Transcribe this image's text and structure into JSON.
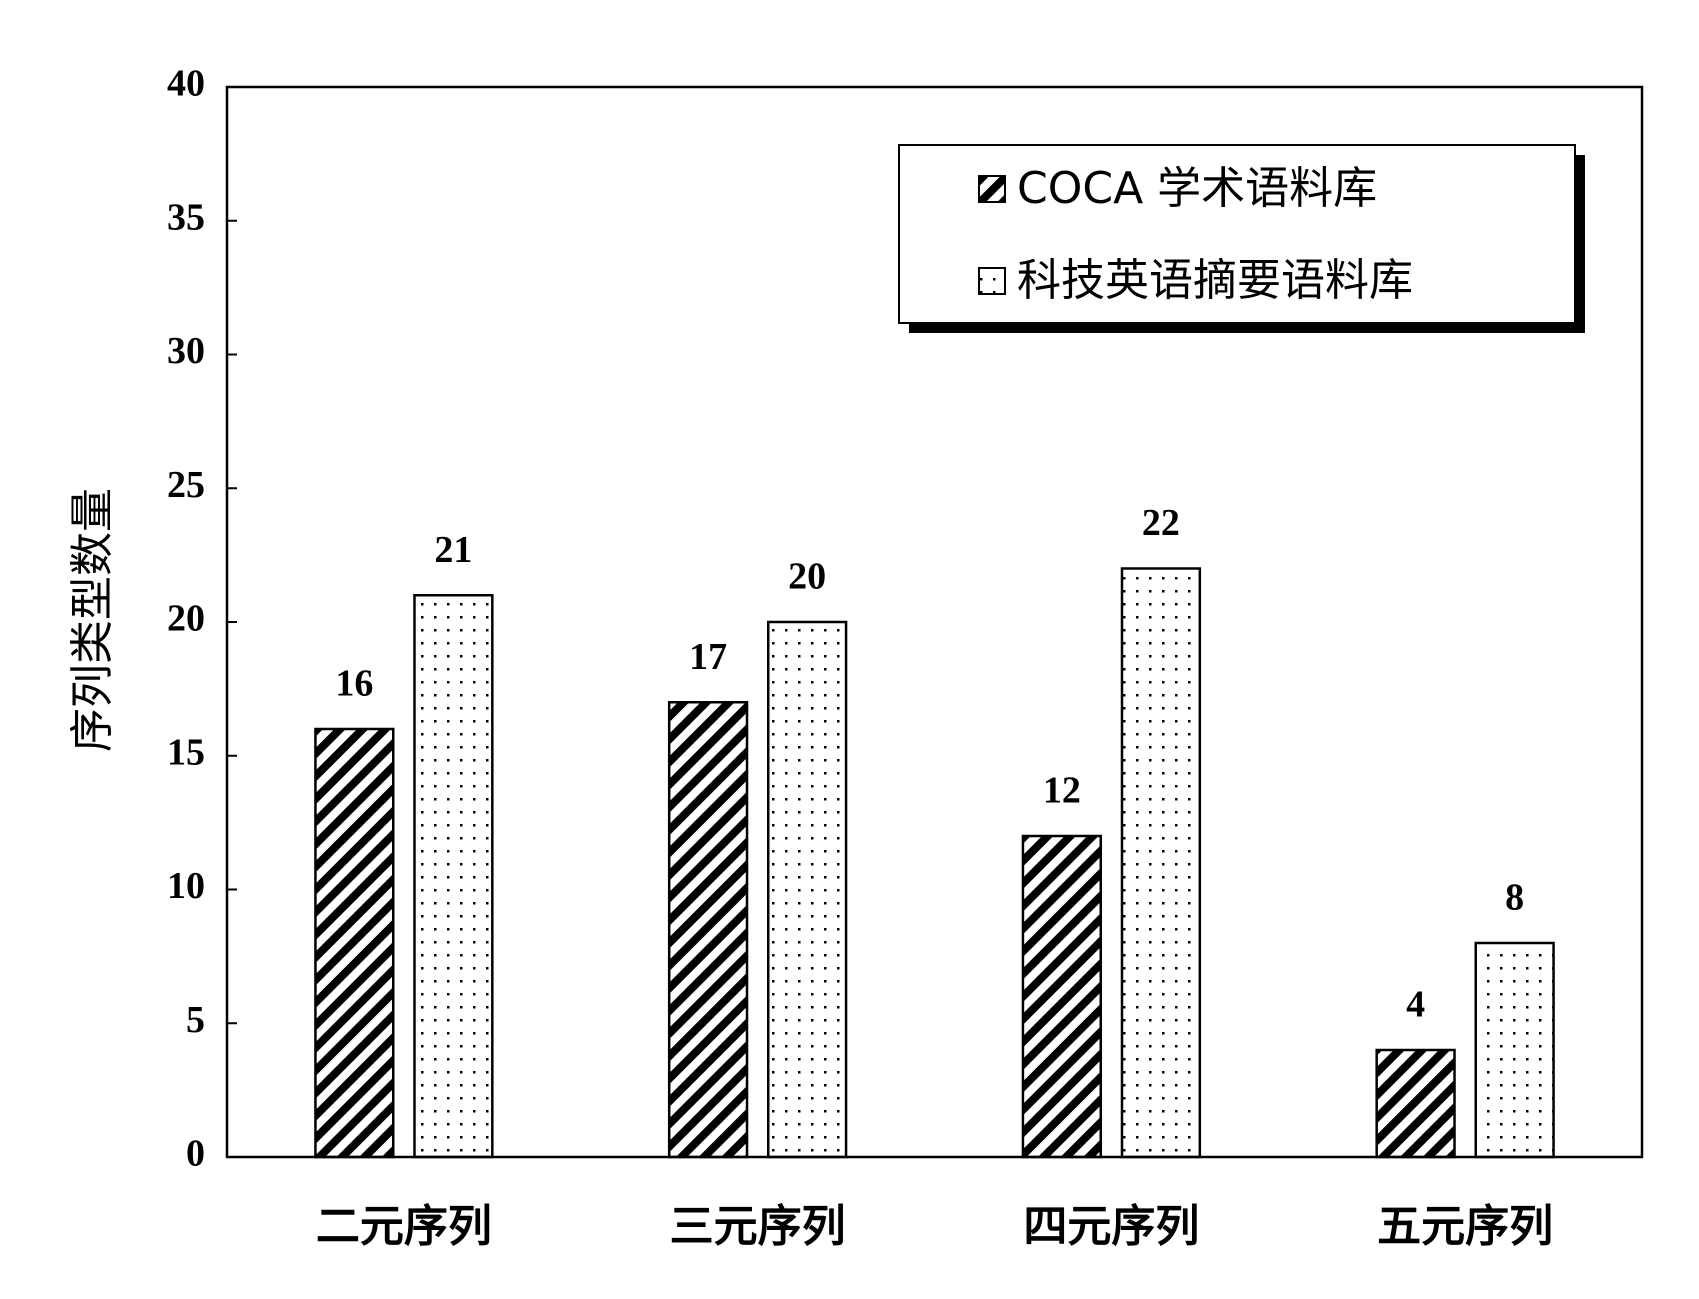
{
  "chart_data": {
    "type": "bar",
    "y_label": "序列类型数量",
    "categories": [
      "二元序列",
      "三元序列",
      "四元序列",
      "五元序列"
    ],
    "series": [
      {
        "name": "COCA 学术语料库",
        "color": "#000000",
        "pattern": "hatch",
        "values": [
          16,
          17,
          12,
          4
        ]
      },
      {
        "name": "科技英语摘要语料库",
        "color": "#000000",
        "pattern": "dots",
        "values": [
          21,
          20,
          22,
          8
        ]
      }
    ],
    "ylim": [
      0,
      40
    ],
    "yticks": [
      0,
      5,
      10,
      15,
      20,
      25,
      30,
      35,
      40
    ],
    "grid": false,
    "legend": "upper right"
  }
}
